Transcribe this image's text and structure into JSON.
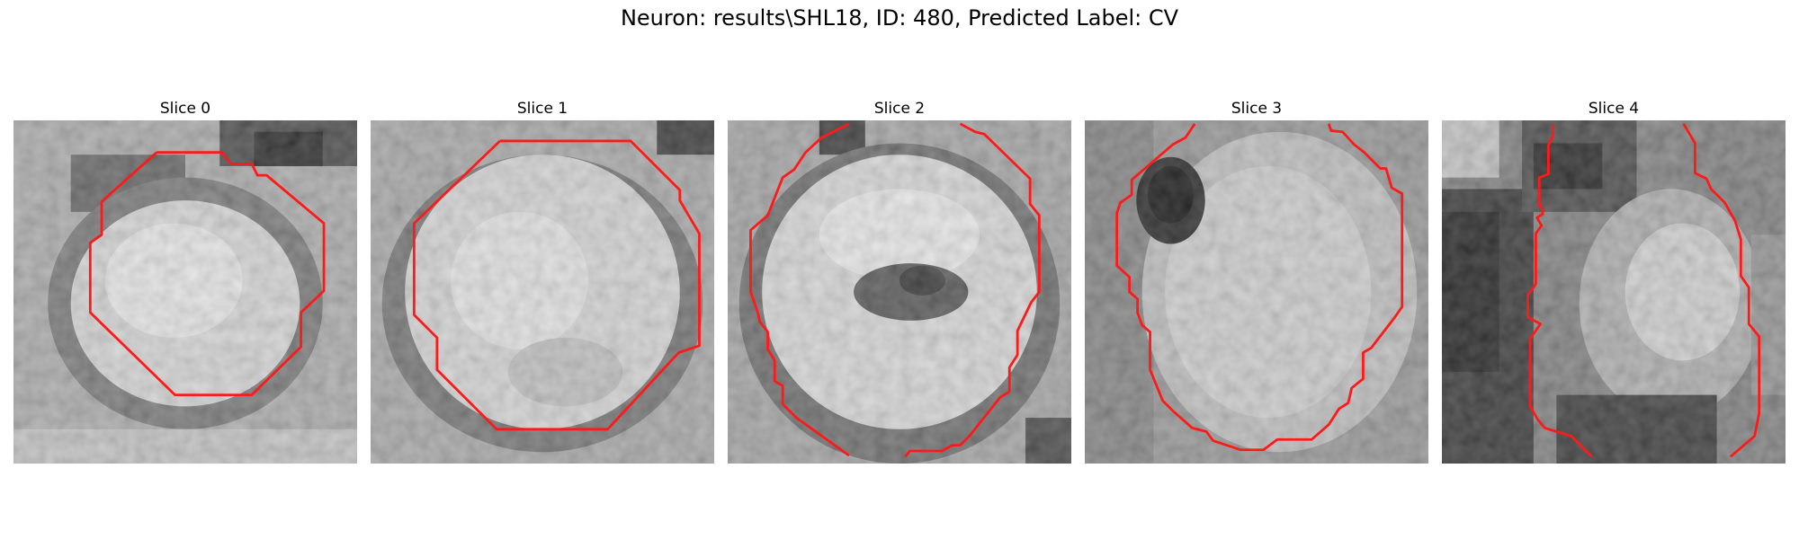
{
  "figure": {
    "title": "Neuron: results\\SHL18, ID: 480, Predicted Label: CV",
    "contour_color": "#ff1a1a"
  },
  "slices": [
    {
      "title": "Slice 0"
    },
    {
      "title": "Slice 1"
    },
    {
      "title": "Slice 2"
    },
    {
      "title": "Slice 3"
    },
    {
      "title": "Slice 4"
    }
  ]
}
